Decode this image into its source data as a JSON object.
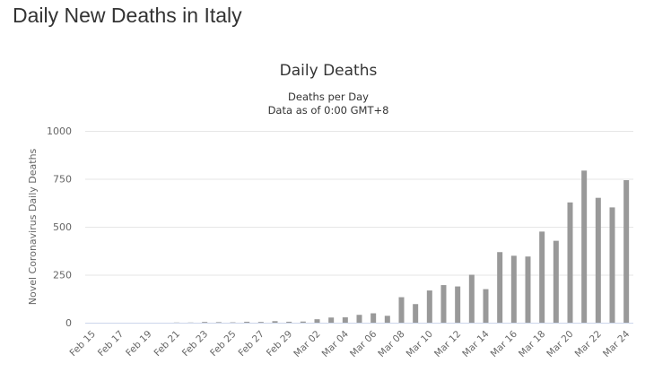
{
  "page": {
    "heading": "Daily New Deaths in Italy"
  },
  "chart_data": {
    "type": "bar",
    "title": "Daily Deaths",
    "subtitle": [
      "Deaths per Day",
      "Data as of 0:00 GMT+8"
    ],
    "xlabel": "",
    "ylabel": "Novel Coronavirus Daily Deaths",
    "ylim": [
      0,
      1000
    ],
    "yticks": [
      0,
      250,
      500,
      750,
      1000
    ],
    "grid": true,
    "legend": "none",
    "colors": {
      "bar": "#999999",
      "grid": "#e6e6e6",
      "axis": "#ccd6eb"
    },
    "categories": [
      "Feb 15",
      "Feb 16",
      "Feb 17",
      "Feb 18",
      "Feb 19",
      "Feb 20",
      "Feb 21",
      "Feb 22",
      "Feb 23",
      "Feb 24",
      "Feb 25",
      "Feb 26",
      "Feb 27",
      "Feb 28",
      "Feb 29",
      "Mar 01",
      "Mar 02",
      "Mar 03",
      "Mar 04",
      "Mar 05",
      "Mar 06",
      "Mar 07",
      "Mar 08",
      "Mar 09",
      "Mar 10",
      "Mar 11",
      "Mar 12",
      "Mar 13",
      "Mar 14",
      "Mar 15",
      "Mar 16",
      "Mar 17",
      "Mar 18",
      "Mar 19",
      "Mar 20",
      "Mar 21",
      "Mar 22",
      "Mar 23",
      "Mar 24"
    ],
    "xtick_labels": [
      "Feb 15",
      "Feb 17",
      "Feb 19",
      "Feb 21",
      "Feb 23",
      "Feb 25",
      "Feb 27",
      "Feb 29",
      "Mar 02",
      "Mar 04",
      "Mar 06",
      "Mar 08",
      "Mar 10",
      "Mar 12",
      "Mar 14",
      "Mar 16",
      "Mar 18",
      "Mar 20",
      "Mar 22",
      "Mar 24"
    ],
    "values": [
      0,
      0,
      0,
      0,
      0,
      0,
      1,
      1,
      4,
      3,
      2,
      5,
      4,
      8,
      5,
      6,
      18,
      27,
      28,
      41,
      49,
      36,
      133,
      97,
      168,
      196,
      189,
      250,
      175,
      368,
      349,
      345,
      475,
      427,
      627,
      793,
      651,
      601,
      743
    ]
  }
}
